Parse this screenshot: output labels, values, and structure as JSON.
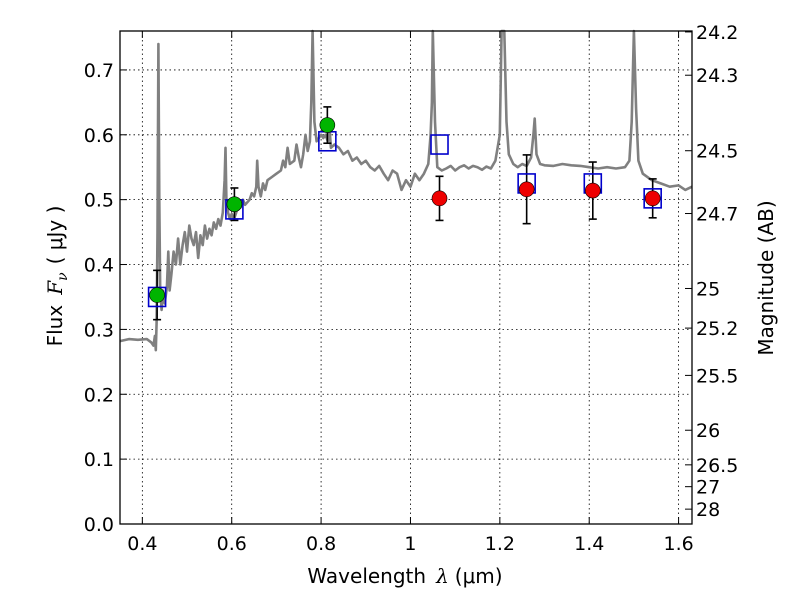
{
  "chart_data": {
    "type": "scatter",
    "xlabel": "Wavelength",
    "xlabel_symbol": "λ",
    "xlabel_unit": "(μm)",
    "ylabel": "Flux",
    "ylabel_symbol": "F",
    "ylabel_sub": "ν",
    "ylabel_unit": "( μJy )",
    "y2label": "Magnitude (AB)",
    "xlim": [
      0.35,
      1.63
    ],
    "ylim": [
      0.0,
      0.76
    ],
    "grid": true,
    "xticks": [
      {
        "value": 0.4,
        "label": "0.4"
      },
      {
        "value": 0.6,
        "label": "0.6"
      },
      {
        "value": 0.8,
        "label": "0.8"
      },
      {
        "value": 1.0,
        "label": "1"
      },
      {
        "value": 1.2,
        "label": "1.2"
      },
      {
        "value": 1.4,
        "label": "1.4"
      },
      {
        "value": 1.6,
        "label": "1.6"
      }
    ],
    "yticks": [
      {
        "value": 0.0,
        "label": "0.0"
      },
      {
        "value": 0.1,
        "label": "0.1"
      },
      {
        "value": 0.2,
        "label": "0.2"
      },
      {
        "value": 0.3,
        "label": "0.3"
      },
      {
        "value": 0.4,
        "label": "0.4"
      },
      {
        "value": 0.5,
        "label": "0.5"
      },
      {
        "value": 0.6,
        "label": "0.6"
      },
      {
        "value": 0.7,
        "label": "0.7"
      }
    ],
    "y2ticks": [
      {
        "label": "24.2",
        "mag": 24.2
      },
      {
        "label": "24.3",
        "mag": 24.3
      },
      {
        "label": "24.5",
        "mag": 24.5
      },
      {
        "label": "24.7",
        "mag": 24.7
      },
      {
        "label": "25",
        "mag": 25.0
      },
      {
        "label": "25.2",
        "mag": 25.2
      },
      {
        "label": "25.5",
        "mag": 25.5
      },
      {
        "label": "26",
        "mag": 26.0
      },
      {
        "label": "26.5",
        "mag": 26.5
      },
      {
        "label": "27",
        "mag": 27.0
      },
      {
        "label": "28",
        "mag": 28.0
      }
    ],
    "colors": {
      "spectrum": "#808080",
      "model_square": "#0000cc",
      "optical": "#00b400",
      "infrared": "#ee0000",
      "errorbar": "#000000"
    },
    "model_squares": [
      {
        "x": 0.433,
        "y": 0.35
      },
      {
        "x": 0.606,
        "y": 0.485
      },
      {
        "x": 0.814,
        "y": 0.59
      },
      {
        "x": 1.065,
        "y": 0.585
      },
      {
        "x": 1.26,
        "y": 0.525
      },
      {
        "x": 1.408,
        "y": 0.525
      },
      {
        "x": 1.542,
        "y": 0.502
      }
    ],
    "optical_points": [
      {
        "x": 0.433,
        "y": 0.353,
        "yerr": 0.038
      },
      {
        "x": 0.606,
        "y": 0.493,
        "yerr": 0.025
      },
      {
        "x": 0.814,
        "y": 0.615,
        "yerr": 0.028
      }
    ],
    "infrared_points": [
      {
        "x": 1.065,
        "y": 0.502,
        "yerr": 0.034
      },
      {
        "x": 1.26,
        "y": 0.516,
        "yerr": 0.053
      },
      {
        "x": 1.408,
        "y": 0.514,
        "yerr": 0.044
      },
      {
        "x": 1.542,
        "y": 0.502,
        "yerr": 0.03
      }
    ],
    "spectrum": [
      [
        0.35,
        0.282
      ],
      [
        0.37,
        0.285
      ],
      [
        0.39,
        0.284
      ],
      [
        0.41,
        0.285
      ],
      [
        0.42,
        0.28
      ],
      [
        0.425,
        0.275
      ],
      [
        0.428,
        0.29
      ],
      [
        0.43,
        0.268
      ],
      [
        0.432,
        0.31
      ],
      [
        0.434,
        0.45
      ],
      [
        0.436,
        0.74
      ],
      [
        0.438,
        0.5
      ],
      [
        0.44,
        0.36
      ],
      [
        0.443,
        0.33
      ],
      [
        0.446,
        0.36
      ],
      [
        0.45,
        0.34
      ],
      [
        0.455,
        0.365
      ],
      [
        0.458,
        0.42
      ],
      [
        0.461,
        0.36
      ],
      [
        0.465,
        0.385
      ],
      [
        0.47,
        0.42
      ],
      [
        0.475,
        0.4
      ],
      [
        0.48,
        0.44
      ],
      [
        0.485,
        0.4
      ],
      [
        0.49,
        0.43
      ],
      [
        0.495,
        0.45
      ],
      [
        0.5,
        0.42
      ],
      [
        0.505,
        0.46
      ],
      [
        0.51,
        0.44
      ],
      [
        0.515,
        0.43
      ],
      [
        0.52,
        0.45
      ],
      [
        0.525,
        0.41
      ],
      [
        0.53,
        0.445
      ],
      [
        0.535,
        0.43
      ],
      [
        0.54,
        0.46
      ],
      [
        0.545,
        0.44
      ],
      [
        0.55,
        0.455
      ],
      [
        0.555,
        0.445
      ],
      [
        0.56,
        0.465
      ],
      [
        0.565,
        0.455
      ],
      [
        0.57,
        0.47
      ],
      [
        0.575,
        0.46
      ],
      [
        0.58,
        0.48
      ],
      [
        0.584,
        0.53
      ],
      [
        0.586,
        0.58
      ],
      [
        0.588,
        0.5
      ],
      [
        0.592,
        0.48
      ],
      [
        0.596,
        0.47
      ],
      [
        0.6,
        0.478
      ],
      [
        0.605,
        0.47
      ],
      [
        0.61,
        0.48
      ],
      [
        0.615,
        0.495
      ],
      [
        0.62,
        0.488
      ],
      [
        0.625,
        0.5
      ],
      [
        0.63,
        0.492
      ],
      [
        0.64,
        0.5
      ],
      [
        0.645,
        0.51
      ],
      [
        0.65,
        0.505
      ],
      [
        0.655,
        0.52
      ],
      [
        0.657,
        0.56
      ],
      [
        0.66,
        0.52
      ],
      [
        0.665,
        0.505
      ],
      [
        0.67,
        0.525
      ],
      [
        0.675,
        0.515
      ],
      [
        0.68,
        0.53
      ],
      [
        0.69,
        0.535
      ],
      [
        0.7,
        0.54
      ],
      [
        0.71,
        0.545
      ],
      [
        0.715,
        0.56
      ],
      [
        0.72,
        0.55
      ],
      [
        0.725,
        0.58
      ],
      [
        0.73,
        0.555
      ],
      [
        0.74,
        0.56
      ],
      [
        0.745,
        0.585
      ],
      [
        0.75,
        0.565
      ],
      [
        0.755,
        0.55
      ],
      [
        0.76,
        0.57
      ],
      [
        0.765,
        0.6
      ],
      [
        0.77,
        0.575
      ],
      [
        0.775,
        0.59
      ],
      [
        0.778,
        0.65
      ],
      [
        0.781,
        0.76
      ],
      [
        0.785,
        0.62
      ],
      [
        0.79,
        0.59
      ],
      [
        0.795,
        0.595
      ],
      [
        0.8,
        0.6
      ],
      [
        0.805,
        0.595
      ],
      [
        0.81,
        0.6
      ],
      [
        0.815,
        0.59
      ],
      [
        0.818,
        0.62
      ],
      [
        0.822,
        0.58
      ],
      [
        0.83,
        0.585
      ],
      [
        0.84,
        0.58
      ],
      [
        0.85,
        0.57
      ],
      [
        0.86,
        0.575
      ],
      [
        0.87,
        0.56
      ],
      [
        0.88,
        0.565
      ],
      [
        0.89,
        0.555
      ],
      [
        0.9,
        0.56
      ],
      [
        0.91,
        0.55
      ],
      [
        0.92,
        0.545
      ],
      [
        0.93,
        0.552
      ],
      [
        0.94,
        0.54
      ],
      [
        0.95,
        0.53
      ],
      [
        0.96,
        0.545
      ],
      [
        0.97,
        0.54
      ],
      [
        0.98,
        0.515
      ],
      [
        0.99,
        0.53
      ],
      [
        1.0,
        0.52
      ],
      [
        1.01,
        0.54
      ],
      [
        1.02,
        0.53
      ],
      [
        1.03,
        0.54
      ],
      [
        1.04,
        0.555
      ],
      [
        1.045,
        0.6
      ],
      [
        1.048,
        0.65
      ],
      [
        1.05,
        0.76
      ],
      [
        1.055,
        0.62
      ],
      [
        1.06,
        0.55
      ],
      [
        1.07,
        0.545
      ],
      [
        1.08,
        0.548
      ],
      [
        1.09,
        0.552
      ],
      [
        1.1,
        0.545
      ],
      [
        1.11,
        0.55
      ],
      [
        1.12,
        0.553
      ],
      [
        1.13,
        0.548
      ],
      [
        1.14,
        0.552
      ],
      [
        1.15,
        0.55
      ],
      [
        1.16,
        0.546
      ],
      [
        1.17,
        0.551
      ],
      [
        1.18,
        0.548
      ],
      [
        1.19,
        0.56
      ],
      [
        1.2,
        0.6
      ],
      [
        1.204,
        0.76
      ],
      [
        1.21,
        0.76
      ],
      [
        1.215,
        0.62
      ],
      [
        1.22,
        0.57
      ],
      [
        1.23,
        0.555
      ],
      [
        1.24,
        0.55
      ],
      [
        1.25,
        0.555
      ],
      [
        1.26,
        0.552
      ],
      [
        1.27,
        0.565
      ],
      [
        1.275,
        0.6
      ],
      [
        1.278,
        0.625
      ],
      [
        1.282,
        0.57
      ],
      [
        1.29,
        0.555
      ],
      [
        1.3,
        0.553
      ],
      [
        1.32,
        0.552
      ],
      [
        1.34,
        0.555
      ],
      [
        1.36,
        0.553
      ],
      [
        1.38,
        0.552
      ],
      [
        1.4,
        0.55
      ],
      [
        1.42,
        0.548
      ],
      [
        1.44,
        0.55
      ],
      [
        1.46,
        0.548
      ],
      [
        1.48,
        0.55
      ],
      [
        1.49,
        0.56
      ],
      [
        1.495,
        0.62
      ],
      [
        1.5,
        0.76
      ],
      [
        1.505,
        0.64
      ],
      [
        1.51,
        0.56
      ],
      [
        1.52,
        0.54
      ],
      [
        1.54,
        0.53
      ],
      [
        1.56,
        0.525
      ],
      [
        1.58,
        0.52
      ],
      [
        1.6,
        0.522
      ],
      [
        1.615,
        0.515
      ],
      [
        1.63,
        0.52
      ]
    ]
  }
}
